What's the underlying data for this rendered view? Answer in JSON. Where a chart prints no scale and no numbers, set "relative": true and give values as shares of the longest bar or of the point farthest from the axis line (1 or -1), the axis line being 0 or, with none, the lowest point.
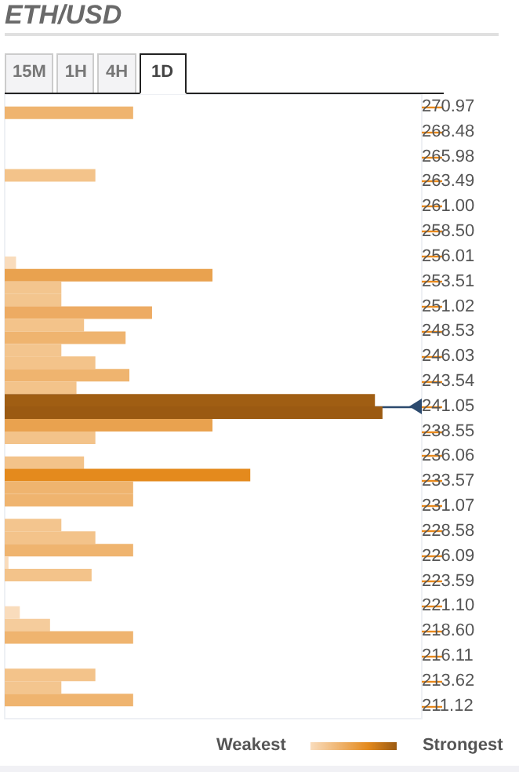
{
  "chart_data": {
    "type": "bar",
    "title": "ETH/USD",
    "orientation": "horizontal",
    "relative": true,
    "annotations": [
      "15M",
      "1H",
      "4H",
      "1D",
      "Weakest",
      "Strongest"
    ],
    "ylim": [
      209.85,
      272.22
    ],
    "yticks": [
      270.97,
      268.48,
      265.98,
      263.49,
      {
        "value": 261,
        "label": "261.00"
      },
      {
        "value": 258.5,
        "label": "258.50"
      },
      256.01,
      253.51,
      251.02,
      248.53,
      246.03,
      243.54,
      241.05,
      238.55,
      236.06,
      233.57,
      231.07,
      228.58,
      226.09,
      223.59,
      {
        "value": 221.1,
        "label": "221.10"
      },
      {
        "value": 218.6,
        "label": "218.60"
      },
      216.11,
      213.62,
      211.12
    ],
    "ref_lines": [
      {
        "axis": "y",
        "value": 241.05,
        "color": "#2c4a6e"
      }
    ],
    "series": [
      {
        "x": [
          270.35,
          264.11,
          255.38,
          254.13,
          252.88,
          251.63,
          250.39,
          249.14,
          247.89,
          246.64,
          245.4,
          244.15,
          242.9,
          241.65,
          240.41,
          239.16,
          237.91,
          235.42,
          234.17,
          232.92,
          231.67,
          229.18,
          227.93,
          226.68,
          225.44,
          224.19,
          220.45,
          219.2,
          217.95,
          214.21,
          212.96,
          211.71
        ],
        "values": [
          0.34,
          0.24,
          0.03,
          0.55,
          0.15,
          0.15,
          0.39,
          0.21,
          0.32,
          0.15,
          0.24,
          0.33,
          0.19,
          0.98,
          1.0,
          0.55,
          0.24,
          0.21,
          0.65,
          0.34,
          0.34,
          0.15,
          0.24,
          0.34,
          0.01,
          0.23,
          0.04,
          0.12,
          0.34,
          0.24,
          0.15,
          0.34
        ],
        "colors": [
          "#efb46f",
          "#f3c38a",
          "#f9dcbc",
          "#e9a24f",
          "#f3c58e",
          "#f3c58e",
          "#edab63",
          "#f3c38a",
          "#efb46f",
          "#f3c58e",
          "#f3c38a",
          "#efb46f",
          "#f3c38a",
          "#a05e13",
          "#9b5a12",
          "#e9a24f",
          "#f3c38a",
          "#f3c38a",
          "#e48a1d",
          "#efb46f",
          "#efb46f",
          "#f3c58e",
          "#f3c38a",
          "#efb46f",
          "#f9dcbc",
          "#f3c38a",
          "#f9dcbc",
          "#f5cc9c",
          "#efb46f",
          "#f3c38a",
          "#f3c58e",
          "#efb46f"
        ]
      }
    ]
  }
}
